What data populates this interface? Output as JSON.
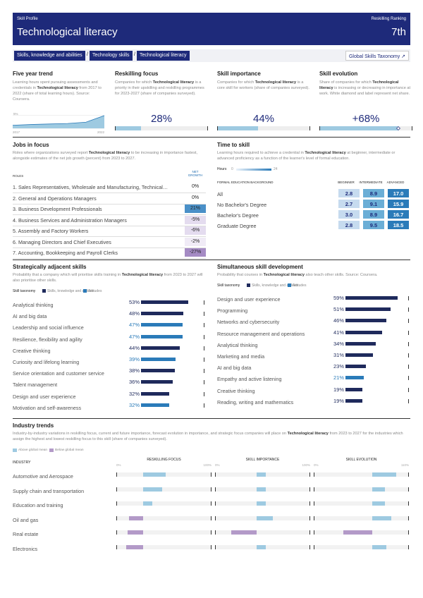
{
  "header": {
    "label": "Skill Profile",
    "ranking_label": "Reskilling Ranking",
    "title": "Technological literacy",
    "ranking": "7th"
  },
  "breadcrumb": {
    "items": [
      "Skills, knowledge and abilities",
      "Technology skills",
      "Technological literacy"
    ],
    "separator": "/",
    "link": "Global Skills Taxonomy ↗"
  },
  "summary": [
    {
      "title": "Five year trend",
      "description": [
        "Learning hours spent pursuing assessments and credentials in ",
        "Technological literacy",
        " from 2017 to 2022 (share of total learning hours). Source: Coursera."
      ],
      "chart": {
        "type": "area",
        "x": [
          2017,
          2018,
          2019,
          2020,
          2021,
          2022
        ],
        "values": [
          1.2,
          1.5,
          1.7,
          1.9,
          2.4,
          5.0
        ],
        "xlim": [
          2017,
          2022
        ],
        "ylim": [
          0,
          5.5
        ],
        "xticks": [
          2017,
          2022
        ],
        "yticks": [
          {
            "value": 5,
            "label": "5%"
          },
          {
            "value": 0,
            "label": "0%"
          }
        ],
        "color": "#9ecae1"
      }
    },
    {
      "title": "Reskilling focus",
      "description": [
        "Companies for which ",
        "Technological literacy",
        " is a priority in their upskilling and reskilling programmes for 2023-2027 (share of companies surveyed)."
      ],
      "value": 28,
      "label": "28%",
      "xlim": [
        0,
        100
      ]
    },
    {
      "title": "Skill importance",
      "description": [
        "Companies for which ",
        "Technological literacy",
        " is a core skill for workers (share of companies surveyed)."
      ],
      "value": 44,
      "label": "44%",
      "xlim": [
        0,
        100
      ]
    },
    {
      "title": "Skill evolution",
      "description": [
        "Share of companies for which ",
        "Technological literacy",
        " is increasing or decreasing in importance at work. White diamond and label represent net share."
      ],
      "value": 68,
      "label": "+68%",
      "xlim": [
        0,
        80
      ]
    }
  ],
  "jobs": {
    "title": "Jobs in focus",
    "description": [
      "Roles where organizations surveyed report ",
      "Technological literacy",
      " to be increasing in importance fastest, alongside estimates of the net job growth (percent) from 2023 to 2027."
    ],
    "headers": [
      "ROLES",
      "NET GROWTH"
    ],
    "rows": [
      {
        "role": "1.  Sales Representatives, Wholesale and Manufacturing, Technical…",
        "growth": "0%",
        "color": "#ffffff"
      },
      {
        "role": "2.  General and Operations Managers",
        "growth": "0%",
        "color": "#ffffff"
      },
      {
        "role": "3.  Business Development Professionals",
        "growth": "21%",
        "color": "#4a90c8"
      },
      {
        "role": "4.  Business Services and Administration Managers",
        "growth": "-5%",
        "color": "#e4dcef"
      },
      {
        "role": "5.  Assembly and Factory Workers",
        "growth": "-6%",
        "color": "#e4dcef"
      },
      {
        "role": "6.  Managing Directors and Chief Executives",
        "growth": "-2%",
        "color": "#f0ebf6"
      },
      {
        "role": "7.  Accounting, Bookkeeping and Payroll Clerks",
        "growth": "-27%",
        "color": "#a58bc4"
      }
    ]
  },
  "time": {
    "title": "Time to skill",
    "description": [
      "Learning hours required to achieve a credential in ",
      "Technological literacy",
      " at beginner, intermediate or advanced proficiency as a function of the learner's level of formal education."
    ],
    "scale": [
      "Hours",
      "0",
      "24"
    ],
    "headers": [
      "FORMAL EDUCATION BACKGROUND",
      "BEGINNER",
      "INTERMEDIATE",
      "ADVANCED"
    ],
    "rows": [
      [
        "All",
        "2.8",
        "8.9",
        "17.0"
      ],
      [
        "No Bachelor's Degree",
        "2.7",
        "9.1",
        "15.9"
      ],
      [
        "Bachelor's Degree",
        "3.0",
        "8.9",
        "16.7"
      ],
      [
        "Graduate Degree",
        "2.8",
        "9.5",
        "18.5"
      ]
    ]
  },
  "adjacent": {
    "title": "Strategically adjacent skills",
    "description": [
      "Probability that a company which will prioritise skills training in ",
      "Technological literacy",
      " from 2023 to 2027 will also prioritise other skills."
    ],
    "legend": {
      "title": "Skill taxonomy",
      "items": [
        {
          "name": "Skills, knowledge and abilities",
          "color": "#1f2a5c"
        },
        {
          "name": "Attitudes",
          "color": "#2b7bb9"
        }
      ]
    },
    "xlim": [
      0,
      70
    ],
    "items": [
      {
        "name": "Analytical thinking",
        "value": 53,
        "label": "53%",
        "color": "#1f2a5c"
      },
      {
        "name": "AI and big data",
        "value": 48,
        "label": "48%",
        "color": "#1f2a5c"
      },
      {
        "name": "Leadership and social influence",
        "value": 47,
        "label": "47%",
        "color": "#2b7bb9"
      },
      {
        "name": "Resilience, flexibility and agility",
        "value": 47,
        "label": "47%",
        "color": "#2b7bb9"
      },
      {
        "name": "Creative thinking",
        "value": 44,
        "label": "44%",
        "color": "#1f2a5c"
      },
      {
        "name": "Curiosity and lifelong learning",
        "value": 39,
        "label": "39%",
        "color": "#2b7bb9"
      },
      {
        "name": "Service orientation and customer service",
        "value": 38,
        "label": "38%",
        "color": "#1f2a5c"
      },
      {
        "name": "Talent management",
        "value": 36,
        "label": "36%",
        "color": "#1f2a5c"
      },
      {
        "name": "Design and user experience",
        "value": 32,
        "label": "32%",
        "color": "#1f2a5c"
      },
      {
        "name": "Motivation and self-awareness",
        "value": 32,
        "label": "32%",
        "color": "#2b7bb9"
      }
    ]
  },
  "simultaneous": {
    "title": "Simultaneous skill development",
    "description": [
      "Probability that courses in ",
      "Technological literacy",
      " also teach other skills. Source: Coursera."
    ],
    "legend": {
      "title": "Skill taxonomy",
      "items": [
        {
          "name": "Skills, knowledge and abilities",
          "color": "#1f2a5c"
        },
        {
          "name": "Attitudes",
          "color": "#2b7bb9"
        }
      ]
    },
    "xlim": [
      0,
      70
    ],
    "items": [
      {
        "name": "Design and user experience",
        "value": 59,
        "label": "59%",
        "color": "#1f2a5c"
      },
      {
        "name": "Programming",
        "value": 51,
        "label": "51%",
        "color": "#1f2a5c"
      },
      {
        "name": "Networks and cybersecurity",
        "value": 46,
        "label": "46%",
        "color": "#1f2a5c"
      },
      {
        "name": "Resource management and operations",
        "value": 41,
        "label": "41%",
        "color": "#1f2a5c"
      },
      {
        "name": "Analytical thinking",
        "value": 34,
        "label": "34%",
        "color": "#1f2a5c"
      },
      {
        "name": "Marketing and media",
        "value": 31,
        "label": "31%",
        "color": "#1f2a5c"
      },
      {
        "name": "AI and big data",
        "value": 23,
        "label": "23%",
        "color": "#1f2a5c"
      },
      {
        "name": "Empathy and active listening",
        "value": 21,
        "label": "21%",
        "color": "#2b7bb9"
      },
      {
        "name": "Creative thinking",
        "value": 19,
        "label": "19%",
        "color": "#1f2a5c"
      },
      {
        "name": "Reading, writing and mathematics",
        "value": 19,
        "label": "19%",
        "color": "#1f2a5c"
      }
    ]
  },
  "industry": {
    "title": "Industry trends",
    "description": [
      "Industry-by-industry variations in reskilling focus, current and future importance, forecast evolution in importance, and strategic focus companies will place on ",
      "Technological literacy",
      " from 2023 to 2027 for the industries which assign the highest and lowest reskilling focus to this skill (share of companies surveyed)."
    ],
    "legend": [
      {
        "name": "Above global mean",
        "color": "#9ecae1"
      },
      {
        "name": "Below global mean",
        "color": "#b39ac8"
      }
    ],
    "header": "INDUSTRY",
    "columns": [
      {
        "name": "RESKILLING FOCUS",
        "xlim": [
          0,
          100
        ],
        "xticks": [
          {
            "value": 0,
            "label": "0%"
          },
          {
            "value": 100,
            "label": "100%"
          }
        ],
        "mean": 28
      },
      {
        "name": "SKILL IMPORTANCE",
        "xlim": [
          0,
          100
        ],
        "xticks": [
          {
            "value": 0,
            "label": "0%"
          },
          {
            "value": 100,
            "label": "100%"
          }
        ],
        "mean": 44
      },
      {
        "name": "SKILL EVOLUTION",
        "xlim": [
          0,
          110
        ],
        "xticks": [
          {
            "value": 0,
            "label": "0%"
          },
          {
            "value": 110,
            "label": "110%"
          }
        ],
        "mean": 68
      }
    ],
    "rows": [
      {
        "name": "Automotive and Aerospace",
        "values": [
          52,
          53,
          95
        ]
      },
      {
        "name": "Supply chain and transportation",
        "values": [
          48,
          53,
          82
        ]
      },
      {
        "name": "Education and training",
        "values": [
          38,
          53,
          82
        ]
      },
      {
        "name": "Oil and gas",
        "values": [
          13,
          61,
          90
        ]
      },
      {
        "name": "Real estate",
        "values": [
          12,
          17,
          34
        ]
      },
      {
        "name": "Electronics",
        "values": [
          10,
          53,
          84
        ]
      }
    ]
  }
}
